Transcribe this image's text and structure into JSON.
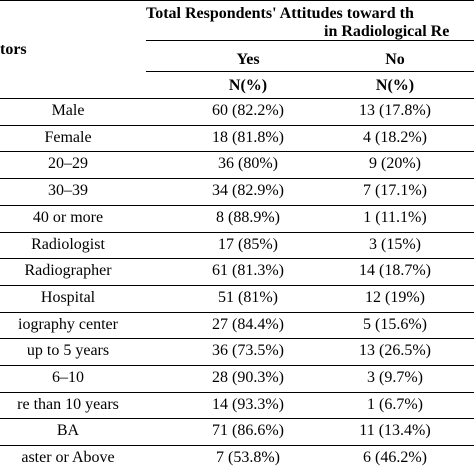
{
  "header": {
    "factors_label": "tors",
    "group_title_line1": "Total Respondents' Attitudes toward th",
    "group_title_line2": "in Radiological Re",
    "col_yes": "Yes",
    "col_no": "No",
    "sub_yes": "N(%)",
    "sub_no": "N(%)"
  },
  "rows": [
    {
      "label": "Male",
      "yes": "60 (82.2%)",
      "no": "13 (17.8%)"
    },
    {
      "label": "Female",
      "yes": "18 (81.8%)",
      "no": "4 (18.2%)"
    },
    {
      "label": "20–29",
      "yes": "36 (80%)",
      "no": "9 (20%)"
    },
    {
      "label": "30–39",
      "yes": "34 (82.9%)",
      "no": "7 (17.1%)"
    },
    {
      "label": "40 or more",
      "yes": "8 (88.9%)",
      "no": "1 (11.1%)"
    },
    {
      "label": "Radiologist",
      "yes": "17 (85%)",
      "no": "3 (15%)"
    },
    {
      "label": "Radiographer",
      "yes": "61 (81.3%)",
      "no": "14 (18.7%)"
    },
    {
      "label": "Hospital",
      "yes": "51 (81%)",
      "no": "12 (19%)"
    },
    {
      "label": "iography center",
      "yes": "27 (84.4%)",
      "no": "5 (15.6%)"
    },
    {
      "label": "up to 5 years",
      "yes": "36 (73.5%)",
      "no": "13 (26.5%)"
    },
    {
      "label": "6–10",
      "yes": "28 (90.3%)",
      "no": "3 (9.7%)"
    },
    {
      "label": "re than 10 years",
      "yes": "14 (93.3%)",
      "no": "1 (6.7%)"
    },
    {
      "label": "BA",
      "yes": "71 (86.6%)",
      "no": "11 (13.4%)"
    },
    {
      "label": "aster or Above",
      "yes": "7 (53.8%)",
      "no": "6 (46.2%)"
    }
  ]
}
